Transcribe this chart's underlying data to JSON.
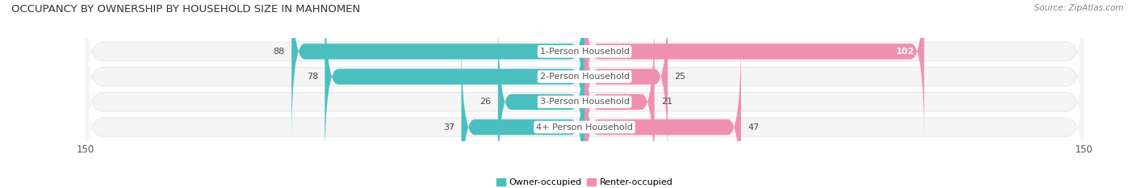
{
  "title": "OCCUPANCY BY OWNERSHIP BY HOUSEHOLD SIZE IN MAHNOMEN",
  "source": "Source: ZipAtlas.com",
  "categories": [
    "1-Person Household",
    "2-Person Household",
    "3-Person Household",
    "4+ Person Household"
  ],
  "owner_values": [
    88,
    78,
    26,
    37
  ],
  "renter_values": [
    102,
    25,
    21,
    47
  ],
  "owner_color": "#4BBFBF",
  "renter_color": "#F090B0",
  "row_bg_color": "#E8E8E8",
  "row_inner_color": "#F5F5F5",
  "xlim": 150,
  "title_fontsize": 9.5,
  "bar_label_fontsize": 8,
  "category_fontsize": 8,
  "legend_fontsize": 8,
  "source_fontsize": 7.5
}
